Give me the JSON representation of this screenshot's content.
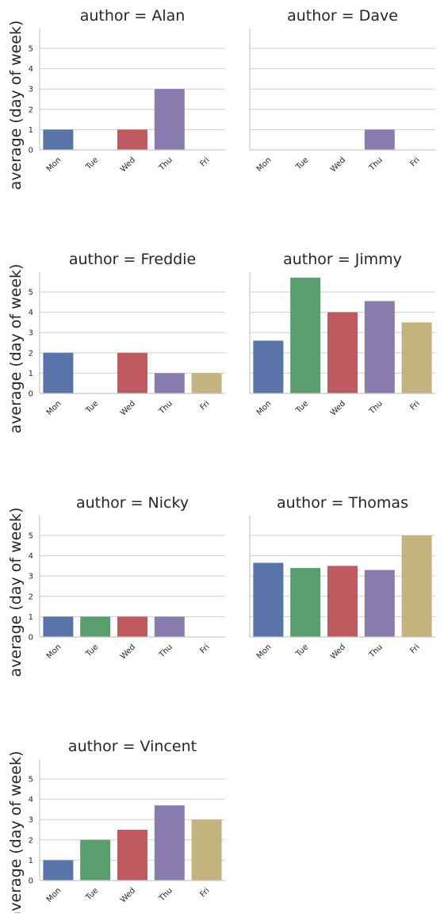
{
  "chart_data": {
    "type": "bar",
    "facet_by": "author",
    "categories": [
      "Mon",
      "Tue",
      "Wed",
      "Thu",
      "Fri"
    ],
    "ylabel": "average (day of week)",
    "ylim": [
      0,
      6
    ],
    "yticks": [
      0,
      1,
      2,
      3,
      4,
      5
    ],
    "grid": "horizontal",
    "colors": [
      "#5874a8",
      "#5a9e6e",
      "#bf5b60",
      "#8a7bae",
      "#c3b37f"
    ],
    "panels": [
      {
        "title": "author = Alan",
        "values": [
          1,
          0,
          1,
          3,
          0
        ]
      },
      {
        "title": "author = Dave",
        "values": [
          0,
          0,
          0,
          1,
          0
        ]
      },
      {
        "title": "author = Freddie",
        "values": [
          2,
          0,
          2,
          1,
          1
        ]
      },
      {
        "title": "author = Jimmy",
        "values": [
          2.6,
          5.7,
          4,
          4.55,
          3.5
        ]
      },
      {
        "title": "author = Nicky",
        "values": [
          1,
          1,
          1,
          1,
          0
        ]
      },
      {
        "title": "author = Thomas",
        "values": [
          3.65,
          3.4,
          3.5,
          3.3,
          5
        ]
      },
      {
        "title": "author = Vincent",
        "values": [
          1,
          2,
          2.5,
          3.7,
          3
        ]
      }
    ]
  }
}
